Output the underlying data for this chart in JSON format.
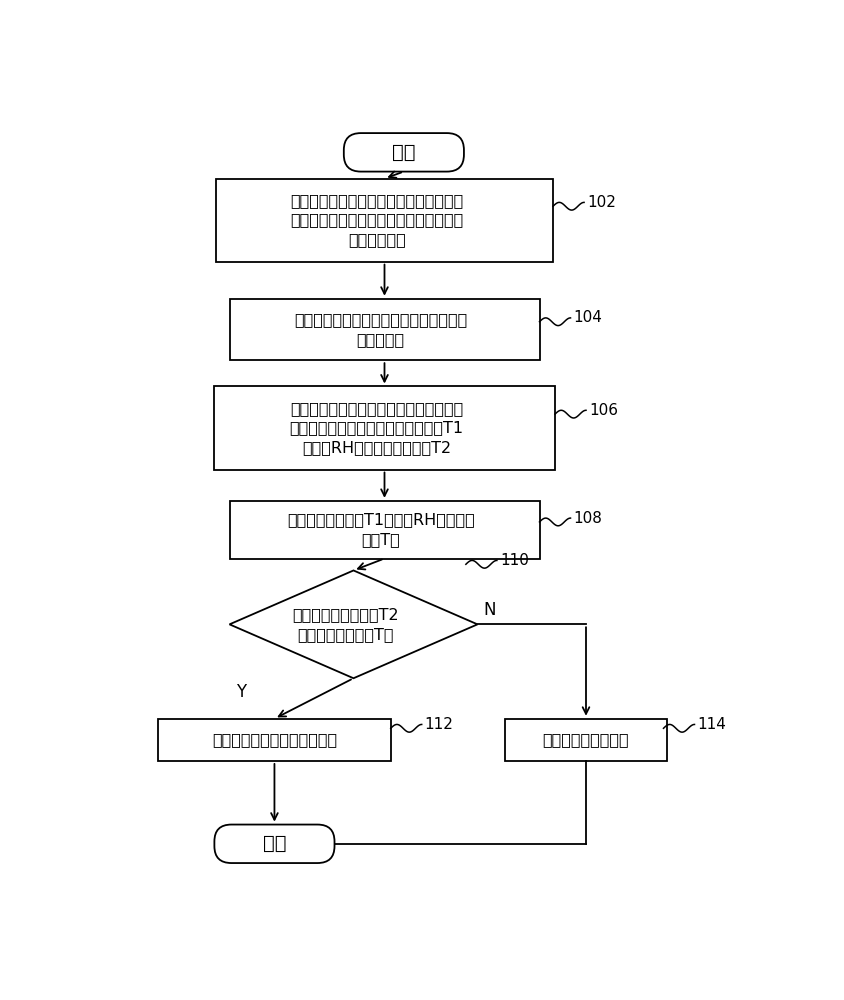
{
  "bg_color": "#ffffff",
  "line_color": "#000000",
  "text_color": "#000000",
  "box_color": "#ffffff",
  "start_end_text": [
    "开始",
    "结束"
  ],
  "box_texts": [
    "在空调器处于制冷或除湿模式的情况下，\n当空调器关机或者定时关机时，检测压缩\n机的运行时间",
    "将运行时间与第一预设阈値及第二预设阈\n値进行比较",
    "当运行时间大于第一预设阈値且小于等于\n第二预设阈値时，检测室内环境温度T1\n、湿度RH及蕴发器盘管温度T2",
    "根据室内环境温度T1及湿度RH计算露点\n温度T露",
    "控制空调器开启干燥防霉模式",
    "控制空调器直接关机"
  ],
  "diamond_text": "判断蕴发器盘管温度T2\n是否小于露点温度T露",
  "labels": [
    "102",
    "104",
    "106",
    "108",
    "110",
    "112",
    "114"
  ],
  "yes_label": "Y",
  "no_label": "N"
}
